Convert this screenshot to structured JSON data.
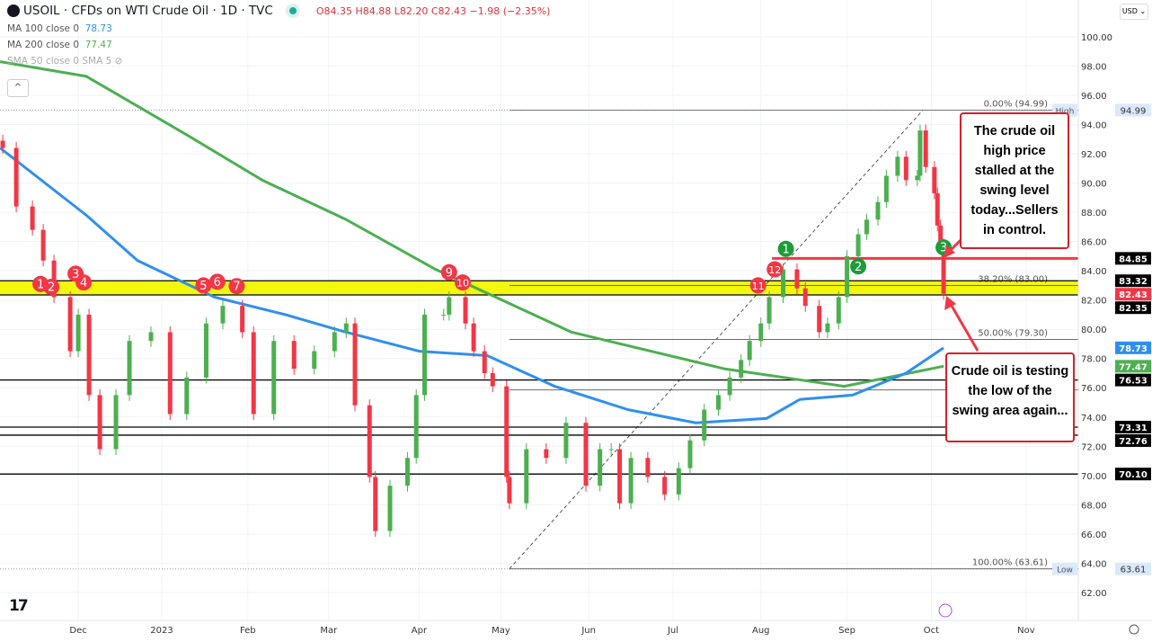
{
  "header": {
    "title": "USOIL · CFDs on WTI Crude Oil · 1D · TVC",
    "ohlc": "O84.35 H84.88 L82.20 C82.43 −1.98 (−2.35%)",
    "indicators": [
      {
        "label": "MA 100 close 0",
        "value": "78.73",
        "color": "#2f8ff0"
      },
      {
        "label": "MA 200 close 0",
        "value": "77.47",
        "color": "#4caf50"
      },
      {
        "label": "SMA 50 close 0 SMA 5",
        "value": ""
      }
    ],
    "currency": "USD ⌄",
    "collapse_icon": "^"
  },
  "annotations": {
    "top": "The crude oil high price stalled at the swing level today...Sellers in control.",
    "bottom": "Crude oil is testing the low of the swing area again..."
  },
  "chart_data": {
    "type": "candlestick",
    "symbol": "USOIL",
    "interval": "1D",
    "ylim": [
      61,
      101
    ],
    "yticks": [
      62,
      64,
      66,
      68,
      70,
      72,
      74,
      76,
      78,
      80,
      82,
      84,
      86,
      88,
      90,
      92,
      94,
      96,
      98,
      100
    ],
    "xticks": [
      {
        "label": "Dec",
        "date": "2022-12-01"
      },
      {
        "label": "2023",
        "date": "2023-01-01"
      },
      {
        "label": "Feb",
        "date": "2023-02-01"
      },
      {
        "label": "Mar",
        "date": "2023-03-01"
      },
      {
        "label": "Apr",
        "date": "2023-04-01"
      },
      {
        "label": "May",
        "date": "2023-05-01"
      },
      {
        "label": "Jun",
        "date": "2023-06-01"
      },
      {
        "label": "Jul",
        "date": "2023-07-01"
      },
      {
        "label": "Aug",
        "date": "2023-08-01"
      },
      {
        "label": "Sep",
        "date": "2023-09-01"
      },
      {
        "label": "Oct",
        "date": "2023-10-01"
      },
      {
        "label": "Nov",
        "date": "2023-11-01"
      }
    ],
    "close": [
      [
        "2022-11-03",
        92.4
      ],
      [
        "2022-11-08",
        88.4
      ],
      [
        "2022-11-14",
        86.8
      ],
      [
        "2022-11-18",
        84.7
      ],
      [
        "2022-11-22",
        82.2
      ],
      [
        "2022-11-28",
        78.5
      ],
      [
        "2022-12-01",
        81.0
      ],
      [
        "2022-12-05",
        75.5
      ],
      [
        "2022-12-09",
        71.8
      ],
      [
        "2022-12-15",
        75.5
      ],
      [
        "2022-12-20",
        79.2
      ],
      [
        "2022-12-28",
        79.8
      ],
      [
        "2023-01-04",
        74.2
      ],
      [
        "2023-01-10",
        76.7
      ],
      [
        "2023-01-17",
        80.4
      ],
      [
        "2023-01-23",
        81.6
      ],
      [
        "2023-01-30",
        79.8
      ],
      [
        "2023-02-03",
        74.2
      ],
      [
        "2023-02-10",
        79.2
      ],
      [
        "2023-02-17",
        77.3
      ],
      [
        "2023-02-24",
        78.5
      ],
      [
        "2023-03-03",
        79.8
      ],
      [
        "2023-03-07",
        80.4
      ],
      [
        "2023-03-10",
        74.8
      ],
      [
        "2023-03-15",
        69.9
      ],
      [
        "2023-03-17",
        66.2
      ],
      [
        "2023-03-22",
        69.3
      ],
      [
        "2023-03-28",
        71.2
      ],
      [
        "2023-03-31",
        75.5
      ],
      [
        "2023-04-03",
        81.0
      ],
      [
        "2023-04-10",
        81.0
      ],
      [
        "2023-04-12",
        82.2
      ],
      [
        "2023-04-18",
        80.4
      ],
      [
        "2023-04-21",
        78.5
      ],
      [
        "2023-04-25",
        77.0
      ],
      [
        "2023-04-28",
        76.1
      ],
      [
        "2023-05-03",
        69.9
      ],
      [
        "2023-05-04",
        68.1
      ],
      [
        "2023-05-10",
        71.8
      ],
      [
        "2023-05-17",
        71.2
      ],
      [
        "2023-05-24",
        73.6
      ],
      [
        "2023-05-31",
        69.3
      ],
      [
        "2023-06-05",
        71.8
      ],
      [
        "2023-06-09",
        71.8
      ],
      [
        "2023-06-12",
        68.1
      ],
      [
        "2023-06-16",
        71.2
      ],
      [
        "2023-06-22",
        69.9
      ],
      [
        "2023-06-28",
        68.7
      ],
      [
        "2023-07-03",
        70.5
      ],
      [
        "2023-07-07",
        72.4
      ],
      [
        "2023-07-12",
        74.5
      ],
      [
        "2023-07-17",
        75.5
      ],
      [
        "2023-07-21",
        76.7
      ],
      [
        "2023-07-25",
        77.9
      ],
      [
        "2023-07-28",
        79.2
      ],
      [
        "2023-08-01",
        80.4
      ],
      [
        "2023-08-04",
        82.2
      ],
      [
        "2023-08-09",
        84.1
      ],
      [
        "2023-08-14",
        82.8
      ],
      [
        "2023-08-17",
        81.6
      ],
      [
        "2023-08-22",
        79.8
      ],
      [
        "2023-08-25",
        80.4
      ],
      [
        "2023-08-29",
        82.2
      ],
      [
        "2023-09-01",
        85.0
      ],
      [
        "2023-09-05",
        86.5
      ],
      [
        "2023-09-08",
        87.5
      ],
      [
        "2023-09-12",
        88.7
      ],
      [
        "2023-09-15",
        90.5
      ],
      [
        "2023-09-19",
        91.8
      ],
      [
        "2023-09-22",
        90.2
      ],
      [
        "2023-09-26",
        90.5
      ],
      [
        "2023-09-27",
        93.6
      ],
      [
        "2023-09-29",
        91.1
      ],
      [
        "2023-10-02",
        89.3
      ],
      [
        "2023-10-03",
        87.1
      ],
      [
        "2023-10-04",
        85.8
      ],
      [
        "2023-10-05",
        82.43
      ]
    ],
    "ma100": {
      "color": "#2f8ff0",
      "points": [
        [
          "2022-11-02",
          92.4
        ],
        [
          "2022-12-04",
          87.8
        ],
        [
          "2022-12-23",
          84.7
        ],
        [
          "2023-01-20",
          82.2
        ],
        [
          "2023-02-14",
          81.0
        ],
        [
          "2023-03-07",
          79.8
        ],
        [
          "2023-04-01",
          78.5
        ],
        [
          "2023-04-26",
          78.2
        ],
        [
          "2023-05-20",
          76.1
        ],
        [
          "2023-06-15",
          74.5
        ],
        [
          "2023-07-09",
          73.6
        ],
        [
          "2023-08-03",
          73.9
        ],
        [
          "2023-08-15",
          75.2
        ],
        [
          "2023-09-03",
          75.5
        ],
        [
          "2023-09-22",
          77.0
        ],
        [
          "2023-10-05",
          78.73
        ]
      ]
    },
    "ma200": {
      "color": "#4caf50",
      "points": [
        [
          "2022-11-02",
          98.3
        ],
        [
          "2022-12-04",
          97.3
        ],
        [
          "2023-01-10",
          93.3
        ],
        [
          "2023-02-06",
          90.2
        ],
        [
          "2023-03-07",
          87.5
        ],
        [
          "2023-04-07",
          84.1
        ],
        [
          "2023-05-26",
          79.8
        ],
        [
          "2023-07-19",
          77.3
        ],
        [
          "2023-08-31",
          76.1
        ],
        [
          "2023-10-05",
          77.47
        ]
      ]
    },
    "levels": [
      {
        "price": 84.85,
        "label": "84.85",
        "color": "#f23645",
        "from": "2023-08-05"
      },
      {
        "price": 83.32,
        "label": "83.32",
        "color": "#000000"
      },
      {
        "price": 82.35,
        "label": "82.35",
        "color": "#000000"
      },
      {
        "price": 76.53,
        "label": "76.53",
        "color": "#000000"
      },
      {
        "price": 73.31,
        "label": "73.31",
        "color": "#000000"
      },
      {
        "price": 72.76,
        "label": "72.76",
        "color": "#000000"
      },
      {
        "price": 70.1,
        "label": "70.10",
        "color": "#000000"
      }
    ],
    "swing_zone": {
      "low": 82.35,
      "high": 83.32,
      "color": "#f2f70d"
    },
    "price_labels": [
      {
        "price": 82.43,
        "label": "82.43",
        "bg": "#f23645"
      },
      {
        "price": 78.73,
        "label": "78.73",
        "bg": "#2f8ff0"
      },
      {
        "price": 77.47,
        "label": "77.47",
        "bg": "#4caf50"
      },
      {
        "price": 94.99,
        "label": "94.99",
        "bg": "#dbe9fb",
        "tag": "High"
      },
      {
        "price": 63.61,
        "label": "63.61",
        "bg": "#dbe9fb",
        "tag": "Low"
      }
    ],
    "fib": {
      "start": "2023-05-04",
      "end": "2023-09-28",
      "low": 63.61,
      "high": 94.99,
      "levels": [
        {
          "price": 94.99,
          "label": "0.00% (94.99)"
        },
        {
          "price": 83.0,
          "label": "38.20% (83.00)"
        },
        {
          "price": 79.3,
          "label": "50.00% (79.30)"
        },
        {
          "price": 75.85,
          "label": ""
        },
        {
          "price": 63.61,
          "label": "100.00% (63.61)"
        }
      ]
    },
    "markers": [
      {
        "n": "1",
        "date": "2022-11-17",
        "price": 83.1,
        "color": "#f23645"
      },
      {
        "n": "2",
        "date": "2022-11-21",
        "price": 82.9,
        "color": "#f23645"
      },
      {
        "n": "3",
        "date": "2022-11-30",
        "price": 83.8,
        "color": "#f23645"
      },
      {
        "n": "4",
        "date": "2022-12-03",
        "price": 83.2,
        "color": "#f23645"
      },
      {
        "n": "5",
        "date": "2023-01-16",
        "price": 83.0,
        "color": "#f23645"
      },
      {
        "n": "6",
        "date": "2023-01-21",
        "price": 83.25,
        "color": "#f23645"
      },
      {
        "n": "7",
        "date": "2023-01-28",
        "price": 82.95,
        "color": "#f23645"
      },
      {
        "n": "9",
        "date": "2023-04-12",
        "price": 83.9,
        "color": "#f23645"
      },
      {
        "n": "10",
        "date": "2023-04-17",
        "price": 83.2,
        "color": "#f23645"
      },
      {
        "n": "11",
        "date": "2023-07-31",
        "price": 83.0,
        "color": "#f23645"
      },
      {
        "n": "12",
        "date": "2023-08-06",
        "price": 84.1,
        "color": "#f23645"
      },
      {
        "n": "1",
        "date": "2023-08-10",
        "price": 85.5,
        "color": "#1e9b3a"
      },
      {
        "n": "2",
        "date": "2023-09-05",
        "price": 84.3,
        "color": "#1e9b3a"
      },
      {
        "n": "3",
        "date": "2023-10-05",
        "price": 85.6,
        "color": "#1e9b3a"
      }
    ],
    "up_color": "#4caf50",
    "down_color": "#f23645"
  }
}
